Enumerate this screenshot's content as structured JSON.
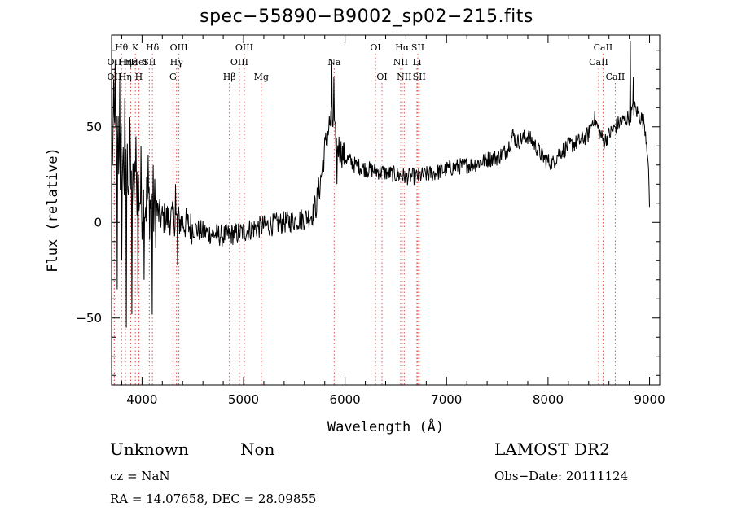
{
  "title": "spec−55890−B9002_sp02−215.fits",
  "info": {
    "object_class": "Unknown",
    "object_subclass": "Non",
    "survey": "LAMOST DR2",
    "cz_line": "cz = NaN",
    "obs_date_line": "Obs−Date: 20111124",
    "coord_line": "RA =   14.07658, DEC =   28.09855"
  },
  "chart_data": {
    "type": "line",
    "xlabel": "Wavelength (Å)",
    "ylabel": "Flux (relative)",
    "xlim": [
      3700,
      9100
    ],
    "ylim": [
      -85,
      98
    ],
    "x_ticks": [
      4000,
      5000,
      6000,
      7000,
      8000,
      9000
    ],
    "y_ticks": [
      -50,
      0,
      50
    ],
    "y_tick_labels": [
      "−50",
      "0",
      "50"
    ],
    "grid": false,
    "line_color": "#000000",
    "marker_color": "#d9534f",
    "spectrum_anchors": [
      [
        3705,
        30
      ],
      [
        3720,
        55
      ],
      [
        3740,
        35
      ],
      [
        3760,
        50
      ],
      [
        3780,
        25
      ],
      [
        3800,
        40
      ],
      [
        3830,
        20
      ],
      [
        3860,
        30
      ],
      [
        3900,
        15
      ],
      [
        3950,
        20
      ],
      [
        4000,
        10
      ],
      [
        4050,
        12
      ],
      [
        4100,
        8
      ],
      [
        4150,
        5
      ],
      [
        4200,
        2
      ],
      [
        4300,
        2
      ],
      [
        4400,
        0
      ],
      [
        4500,
        -3
      ],
      [
        4600,
        -5
      ],
      [
        4700,
        -6
      ],
      [
        4800,
        -7
      ],
      [
        4900,
        -6
      ],
      [
        5000,
        -5
      ],
      [
        5100,
        -3
      ],
      [
        5200,
        -2
      ],
      [
        5300,
        -1
      ],
      [
        5400,
        0
      ],
      [
        5500,
        1
      ],
      [
        5600,
        2
      ],
      [
        5680,
        4
      ],
      [
        5720,
        10
      ],
      [
        5760,
        22
      ],
      [
        5800,
        38
      ],
      [
        5840,
        50
      ],
      [
        5870,
        54
      ],
      [
        5900,
        45
      ],
      [
        5950,
        38
      ],
      [
        6000,
        34
      ],
      [
        6100,
        30
      ],
      [
        6200,
        28
      ],
      [
        6300,
        27
      ],
      [
        6400,
        26
      ],
      [
        6500,
        25
      ],
      [
        6600,
        24
      ],
      [
        6700,
        24
      ],
      [
        6800,
        25
      ],
      [
        6900,
        26
      ],
      [
        7000,
        28
      ],
      [
        7100,
        29
      ],
      [
        7200,
        30
      ],
      [
        7300,
        31
      ],
      [
        7400,
        33
      ],
      [
        7500,
        34
      ],
      [
        7600,
        38
      ],
      [
        7650,
        46
      ],
      [
        7700,
        42
      ],
      [
        7750,
        44
      ],
      [
        7800,
        45
      ],
      [
        7850,
        42
      ],
      [
        7900,
        38
      ],
      [
        7950,
        34
      ],
      [
        8000,
        32
      ],
      [
        8050,
        31
      ],
      [
        8100,
        36
      ],
      [
        8200,
        40
      ],
      [
        8300,
        42
      ],
      [
        8400,
        46
      ],
      [
        8450,
        55
      ],
      [
        8500,
        48
      ],
      [
        8550,
        42
      ],
      [
        8600,
        46
      ],
      [
        8700,
        52
      ],
      [
        8800,
        55
      ],
      [
        8850,
        60
      ],
      [
        8900,
        56
      ],
      [
        8950,
        52
      ],
      [
        8980,
        38
      ],
      [
        9000,
        10
      ]
    ],
    "spikes": [
      [
        3735,
        85
      ],
      [
        3755,
        -35
      ],
      [
        3780,
        75
      ],
      [
        3800,
        -20
      ],
      [
        3830,
        65
      ],
      [
        3845,
        -55
      ],
      [
        3880,
        55
      ],
      [
        3900,
        -48
      ],
      [
        3940,
        45
      ],
      [
        3960,
        -38
      ],
      [
        3990,
        40
      ],
      [
        4020,
        -30
      ],
      [
        4060,
        35
      ],
      [
        4100,
        -48
      ],
      [
        4110,
        30
      ],
      [
        4330,
        20
      ],
      [
        4350,
        -22
      ],
      [
        5870,
        85
      ],
      [
        5890,
        76
      ],
      [
        5920,
        20
      ],
      [
        8810,
        95
      ],
      [
        8840,
        76
      ]
    ],
    "line_markers": [
      {
        "label": "Hθ",
        "x": 3798,
        "row": 0
      },
      {
        "label": "K",
        "x": 3934,
        "row": 0
      },
      {
        "label": "Hδ",
        "x": 4102,
        "row": 0
      },
      {
        "label": "OIII",
        "x": 4363,
        "row": 0
      },
      {
        "label": "OIII",
        "x": 5007,
        "row": 0
      },
      {
        "label": "OI",
        "x": 6300,
        "row": 0
      },
      {
        "label": "Hα",
        "x": 6563,
        "row": 0
      },
      {
        "label": "SII",
        "x": 6717,
        "row": 0
      },
      {
        "label": "CaII",
        "x": 8542,
        "row": 0
      },
      {
        "label": "OII",
        "x": 3727,
        "row": 1
      },
      {
        "label": "Hη",
        "x": 3835,
        "row": 1
      },
      {
        "label": "Hε",
        "x": 3889,
        "row": 1
      },
      {
        "label": "HeI",
        "x": 3970,
        "row": 1
      },
      {
        "label": "SII",
        "x": 4072,
        "row": 1
      },
      {
        "label": "Hγ",
        "x": 4340,
        "row": 1
      },
      {
        "label": "OIII",
        "x": 4959,
        "row": 1
      },
      {
        "label": "Na",
        "x": 5893,
        "row": 1
      },
      {
        "label": "NII",
        "x": 6548,
        "row": 1
      },
      {
        "label": "Li",
        "x": 6708,
        "row": 1
      },
      {
        "label": "CaII",
        "x": 8498,
        "row": 1
      },
      {
        "label": "OII",
        "x": 3727,
        "row": 2
      },
      {
        "label": "Hη",
        "x": 3835,
        "row": 2
      },
      {
        "label": "H",
        "x": 3968,
        "row": 2
      },
      {
        "label": "G",
        "x": 4305,
        "row": 2
      },
      {
        "label": "Hβ",
        "x": 4861,
        "row": 2
      },
      {
        "label": "Mg",
        "x": 5175,
        "row": 2
      },
      {
        "label": "OI",
        "x": 6364,
        "row": 2
      },
      {
        "label": "NII",
        "x": 6583,
        "row": 2
      },
      {
        "label": "SII",
        "x": 6731,
        "row": 2
      },
      {
        "label": "CaII",
        "x": 8662,
        "row": 2
      }
    ]
  }
}
